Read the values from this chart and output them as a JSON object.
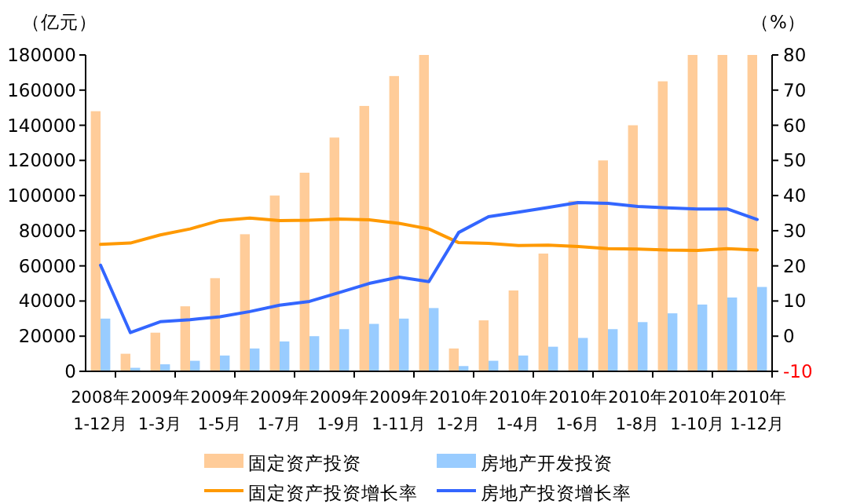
{
  "chart_data": {
    "type": "bar",
    "ylabel": "（亿元）",
    "y2label": "（%）",
    "categories": [
      "2008年\n1-12月",
      null,
      "2009年\n1-3月",
      null,
      "2009年\n1-5月",
      null,
      "2009年\n1-7月",
      null,
      "2009年\n1-9月",
      null,
      "2009年\n1-11月",
      null,
      "2010年\n1-2月",
      null,
      "2010年\n1-4月",
      null,
      "2010年\n1-6月",
      null,
      "2010年\n1-8月",
      null,
      "2010年\n1-10月",
      null,
      "2010年\n1-12月"
    ],
    "series": [
      {
        "name": "固定资产投资",
        "color": "#ffcc99",
        "values": [
          148000,
          10000,
          22000,
          37000,
          53000,
          78000,
          100000,
          113000,
          133000,
          151000,
          168000,
          180000,
          13000,
          29000,
          46000,
          67000,
          97000,
          120000,
          140000,
          165000,
          180000,
          180000,
          180000
        ]
      },
      {
        "name": "房地产开发投资",
        "color": "#99ccff",
        "values": [
          30000,
          2000,
          4000,
          6000,
          9000,
          13000,
          17000,
          20000,
          24000,
          27000,
          30000,
          36000,
          3000,
          6000,
          9000,
          14000,
          19000,
          24000,
          28000,
          33000,
          38000,
          42000,
          48000
        ]
      },
      {
        "name": "固定资产投资增长率",
        "type": "line",
        "axis": "y2",
        "color": "#ff9900",
        "values": [
          26.1,
          26.5,
          28.8,
          30.5,
          32.9,
          33.6,
          32.9,
          33.0,
          33.3,
          33.1,
          32.1,
          30.5,
          26.6,
          26.4,
          25.8,
          25.9,
          25.5,
          24.9,
          24.8,
          24.5,
          24.4,
          24.9,
          24.5
        ]
      },
      {
        "name": "房地产投资增长率",
        "type": "line",
        "axis": "y2",
        "color": "#3366ff",
        "values": [
          20.2,
          1.0,
          4.1,
          4.7,
          5.5,
          7.0,
          8.8,
          9.9,
          12.4,
          15.0,
          16.8,
          15.5,
          29.5,
          34.0,
          35.3,
          36.6,
          38.0,
          37.8,
          36.9,
          36.5,
          36.2,
          36.2,
          33.2
        ]
      }
    ],
    "ylim": [
      0,
      180000
    ],
    "yticks": [
      0,
      20000,
      40000,
      60000,
      80000,
      100000,
      120000,
      140000,
      160000,
      180000
    ],
    "y2lim": [
      -10,
      80
    ],
    "y2ticks": [
      -10,
      0,
      10,
      20,
      30,
      40,
      50,
      60,
      70,
      80
    ],
    "grid": false,
    "legend": "bottom",
    "marker": "none",
    "line_style": "solid"
  }
}
